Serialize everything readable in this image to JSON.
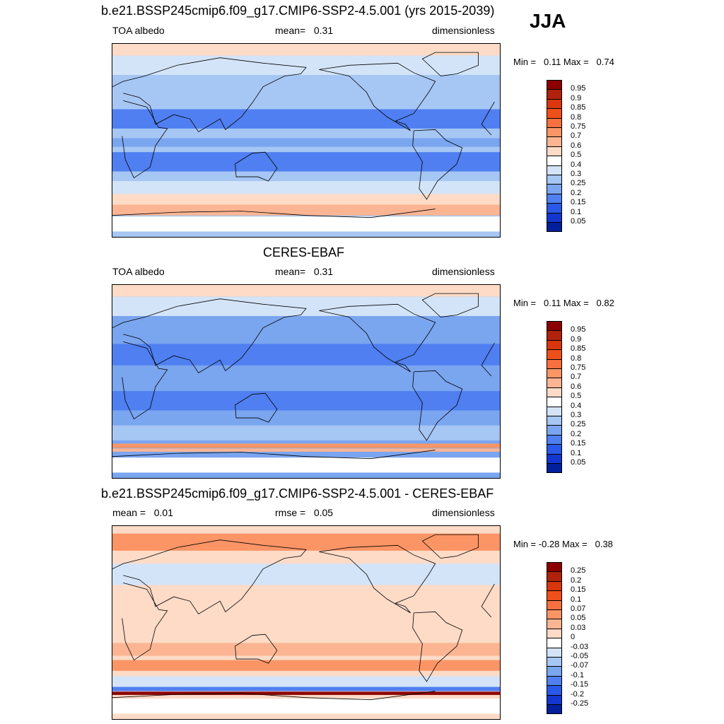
{
  "season": "JJA",
  "panels": [
    {
      "title": "b.e21.BSSP245cmip6.f09_g17.CMIP6-SSP2-4.5.001 (yrs 2015-2039)",
      "left": "TOA albedo",
      "center": "mean=   0.31",
      "right": "dimensionless",
      "minmax": "Min =   0.11 Max =   0.74",
      "colorbar": {
        "labels": [
          "0.95",
          "0.9",
          "0.85",
          "0.8",
          "0.75",
          "0.7",
          "0.6",
          "0.5",
          "0.4",
          "0.3",
          "0.25",
          "0.2",
          "0.15",
          "0.1",
          "0.05"
        ],
        "colors": [
          "#8b0000",
          "#b0220c",
          "#d9360d",
          "#ef4f1a",
          "#f8703f",
          "#fb9566",
          "#fcb592",
          "#fddbc7",
          "#ffffff",
          "#d4e4f8",
          "#a6c6f4",
          "#7aa5ef",
          "#4f7ff0",
          "#2a58e8",
          "#1436d0",
          "#021f9c"
        ]
      }
    },
    {
      "title": "CERES-EBAF",
      "left": "TOA albedo",
      "center": "mean=   0.31",
      "right": "dimensionless",
      "minmax": "Min =   0.11 Max =   0.82",
      "colorbar": {
        "labels": [
          "0.95",
          "0.9",
          "0.85",
          "0.8",
          "0.75",
          "0.7",
          "0.6",
          "0.5",
          "0.4",
          "0.3",
          "0.25",
          "0.2",
          "0.15",
          "0.1",
          "0.05"
        ],
        "colors": [
          "#8b0000",
          "#b0220c",
          "#d9360d",
          "#ef4f1a",
          "#f8703f",
          "#fb9566",
          "#fcb592",
          "#fddbc7",
          "#ffffff",
          "#d4e4f8",
          "#a6c6f4",
          "#7aa5ef",
          "#4f7ff0",
          "#2a58e8",
          "#1436d0",
          "#021f9c"
        ]
      }
    },
    {
      "title": "b.e21.BSSP245cmip6.f09_g17.CMIP6-SSP2-4.5.001 - CERES-EBAF",
      "left": "mean =   0.01",
      "center": "rmse =   0.05",
      "right": "dimensionless",
      "minmax": "Min = -0.28 Max =   0.38",
      "colorbar": {
        "labels": [
          "0.25",
          "0.2",
          "0.15",
          "0.1",
          "0.07",
          "0.05",
          "0.03",
          "0",
          "-0.03",
          "-0.05",
          "-0.07",
          "-0.1",
          "-0.15",
          "-0.2",
          "-0.25"
        ],
        "colors": [
          "#8b0000",
          "#b0220c",
          "#d9360d",
          "#ef4f1a",
          "#f8703f",
          "#fb9566",
          "#fcb592",
          "#fddbc7",
          "#ffffff",
          "#d4e4f8",
          "#a6c6f4",
          "#7aa5ef",
          "#4f7ff0",
          "#2a58e8",
          "#1436d0",
          "#021f9c"
        ]
      }
    }
  ],
  "map_fields": [
    {
      "base": "#a6c6f4",
      "bands": [
        {
          "lat": 85,
          "h": 12,
          "color": "#fddbc7"
        },
        {
          "lat": 70,
          "h": 18,
          "color": "#d4e4f8"
        },
        {
          "lat": 20,
          "h": 18,
          "color": "#4f7ff0"
        },
        {
          "lat": -2,
          "h": 8,
          "color": "#7aa5ef"
        },
        {
          "lat": -20,
          "h": 18,
          "color": "#4f7ff0"
        },
        {
          "lat": -45,
          "h": 14,
          "color": "#d4e4f8"
        },
        {
          "lat": -55,
          "h": 10,
          "color": "#fddbc7"
        },
        {
          "lat": -65,
          "h": 10,
          "color": "#fcb592"
        },
        {
          "lat": -78,
          "h": 14,
          "color": "#ffffff"
        }
      ]
    },
    {
      "base": "#7aa5ef",
      "bands": [
        {
          "lat": 85,
          "h": 12,
          "color": "#fddbc7"
        },
        {
          "lat": 70,
          "h": 18,
          "color": "#d4e4f8"
        },
        {
          "lat": 25,
          "h": 20,
          "color": "#4f7ff0"
        },
        {
          "lat": -18,
          "h": 18,
          "color": "#4f7ff0"
        },
        {
          "lat": -48,
          "h": 14,
          "color": "#a6c6f4"
        },
        {
          "lat": -60,
          "h": 4,
          "color": "#fb9566"
        },
        {
          "lat": -64,
          "h": 3,
          "color": "#fcb592"
        },
        {
          "lat": -78,
          "h": 14,
          "color": "#ffffff"
        }
      ]
    },
    {
      "base": "#fddbc7",
      "bands": [
        {
          "lat": 75,
          "h": 16,
          "color": "#fb9566"
        },
        {
          "lat": 45,
          "h": 20,
          "color": "#d4e4f8"
        },
        {
          "lat": 15,
          "h": 14,
          "color": "#fddbc7"
        },
        {
          "lat": -25,
          "h": 12,
          "color": "#fcb592"
        },
        {
          "lat": -40,
          "h": 10,
          "color": "#fb9566"
        },
        {
          "lat": -55,
          "h": 10,
          "color": "#d4e4f8"
        },
        {
          "lat": -62,
          "h": 4,
          "color": "#4f7ff0"
        },
        {
          "lat": -66,
          "h": 3,
          "color": "#8b0000"
        },
        {
          "lat": -78,
          "h": 14,
          "color": "#ffffff"
        }
      ]
    }
  ]
}
